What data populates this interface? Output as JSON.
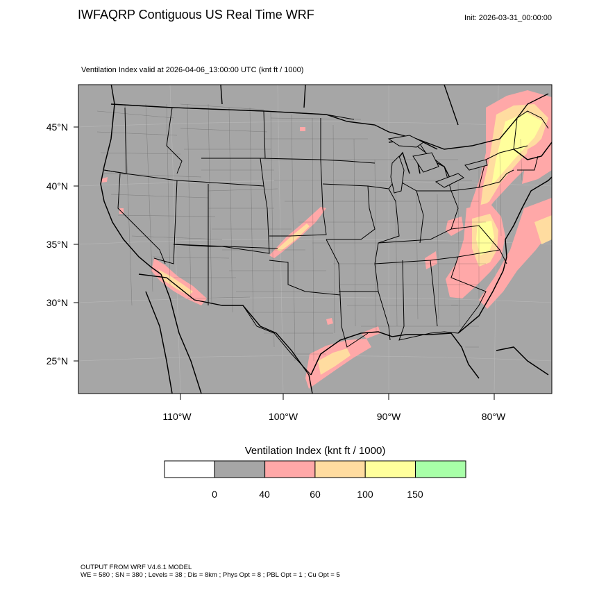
{
  "header": {
    "title": "IWFAQRP Contiguous US Real Time WRF",
    "init": "Init: 2026-03-31_00:00:00"
  },
  "plot": {
    "subtitle": "Ventilation Index valid at 2026-04-06_13:00:00 UTC   (knt ft / 1000)",
    "lat_labels": [
      "45°N",
      "40°N",
      "35°N",
      "30°N",
      "25°N"
    ],
    "lon_labels": [
      "110°W",
      "100°W",
      "90°W",
      "80°W"
    ],
    "background_color": "#a6a6a6"
  },
  "colorbar": {
    "title": "Ventilation Index  (knt ft / 1000)",
    "colors": [
      "#ffffff",
      "#a6a6a6",
      "#ffa8a8",
      "#ffdca0",
      "#ffff9c",
      "#a8ffa8"
    ],
    "tick_labels": [
      "0",
      "40",
      "60",
      "100",
      "150"
    ]
  },
  "footer": {
    "line1": "OUTPUT FROM WRF V4.6.1 MODEL",
    "line2": "WE = 580 ; SN = 380 ; Levels = 38 ; Dis = 8km ; Phys Opt = 8 ; PBL Opt = 1 ; Cu Opt = 5"
  }
}
